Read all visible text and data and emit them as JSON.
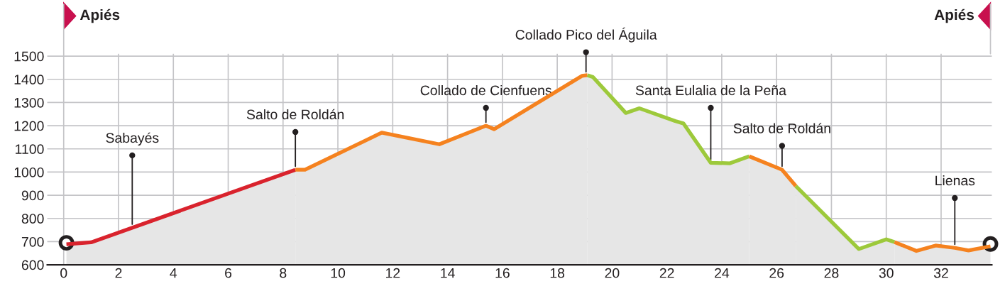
{
  "chart_data": {
    "type": "area",
    "series": [
      {
        "color": "#d9232d",
        "x": [
          0.1,
          1.0,
          8.45
        ],
        "values": [
          689,
          697,
          1010
        ]
      },
      {
        "color": "#f5821f",
        "x": [
          8.45,
          8.8,
          11.6,
          13.7,
          15.4,
          15.7,
          18.9,
          19.1
        ],
        "values": [
          1010,
          1010,
          1170,
          1120,
          1200,
          1185,
          1415,
          1418
        ]
      },
      {
        "color": "#9dc93b",
        "x": [
          19.1,
          19.3,
          20.5,
          21.0,
          22.3,
          22.6,
          23.6,
          24.3,
          25.0
        ],
        "values": [
          1418,
          1410,
          1255,
          1275,
          1220,
          1210,
          1040,
          1038,
          1068
        ]
      },
      {
        "color": "#f5821f",
        "x": [
          25.0,
          26.2,
          26.7
        ],
        "values": [
          1068,
          1010,
          940
        ]
      },
      {
        "color": "#9dc93b",
        "x": [
          26.7,
          29.0,
          30.0,
          30.3
        ],
        "values": [
          940,
          668,
          710,
          698
        ]
      },
      {
        "color": "#f5821f",
        "x": [
          30.3,
          31.1,
          31.8,
          32.5,
          33.0,
          33.8
        ],
        "values": [
          698,
          660,
          683,
          673,
          662,
          680
        ]
      },
      {
        "type": "scatter",
        "marker": "circle",
        "color": "#231f20",
        "x": [
          0.1,
          33.8
        ],
        "values": [
          695,
          690
        ]
      }
    ],
    "annotations": [
      "Apiés",
      "Apiés",
      {
        "text": "Sabayés",
        "x": 2.5,
        "y": 1072
      },
      {
        "text": "Salto de Roldán",
        "x": 8.45,
        "y": 1173
      },
      {
        "text": "Collado de Cienfuens",
        "x": 15.4,
        "y": 1277
      },
      {
        "text": "Collado Pico del Águila",
        "x": 19.05,
        "y": 1517
      },
      {
        "text": "Santa Eulalia de la Peña",
        "x": 23.6,
        "y": 1277
      },
      {
        "text": "Salto de Roldán",
        "x": 26.2,
        "y": 1113
      },
      {
        "text": "Lienas",
        "x": 32.5,
        "y": 888
      }
    ],
    "xlim": [
      -0.6,
      33.85
    ],
    "ylim": [
      600,
      1510
    ],
    "xticks": [
      0,
      2,
      4,
      6,
      8,
      10,
      12,
      14,
      16,
      18,
      20,
      22,
      24,
      26,
      28,
      30,
      32
    ],
    "yticks": [
      600,
      700,
      800,
      900,
      1000,
      1100,
      1200,
      1300,
      1400,
      1500
    ],
    "grid": true,
    "legend": false
  }
}
